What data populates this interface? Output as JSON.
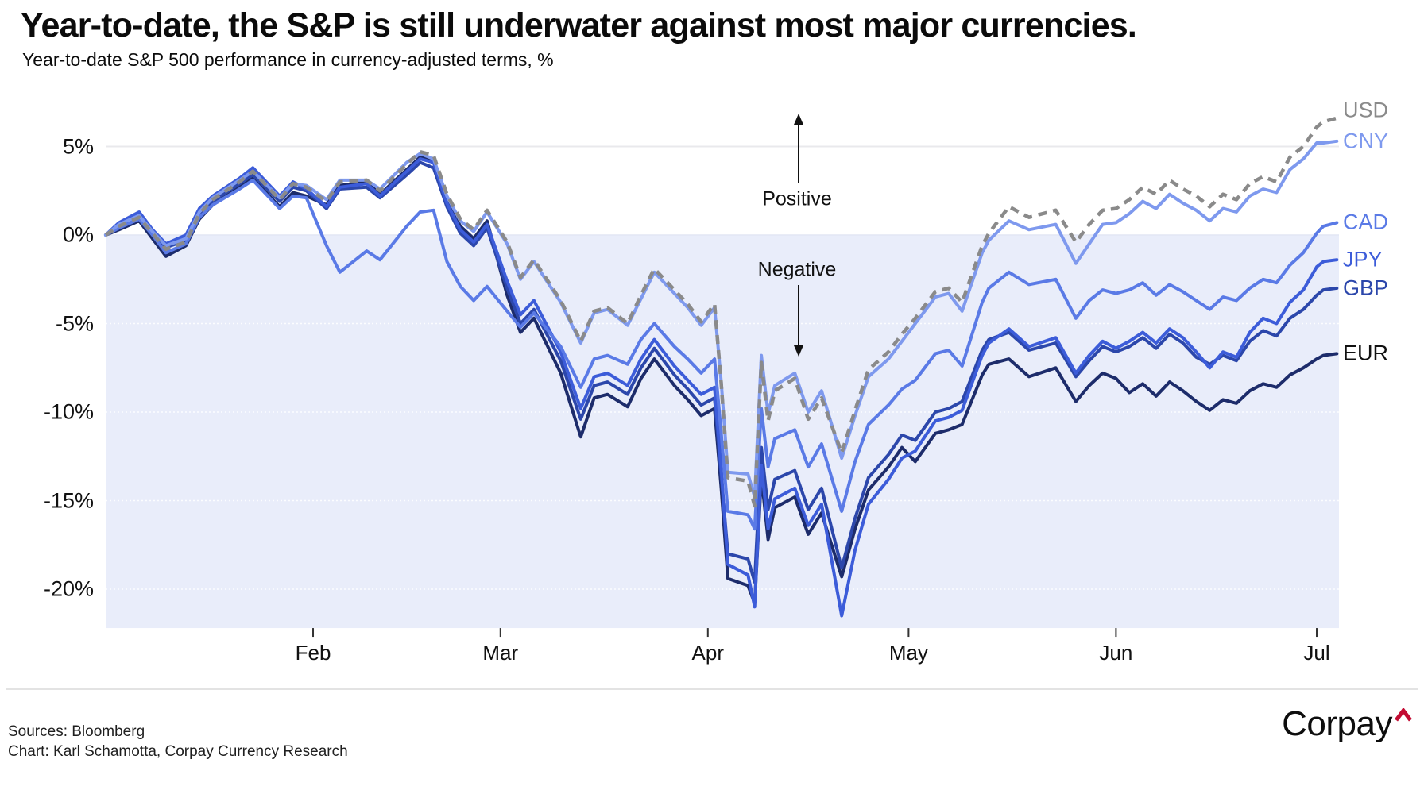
{
  "chart_data": {
    "type": "line",
    "title": "Year-to-date, the S&P is still underwater against most major currencies.",
    "subtitle": "Year-to-date S&P 500 performance in currency-adjusted terms, %",
    "unit": "%",
    "x_unit": "day_of_year_2025",
    "xlim_days": [
      1,
      185
    ],
    "ylim": [
      -22.2,
      7.0
    ],
    "grid": true,
    "negative_region_fill": "#e9edfa",
    "x": [
      1,
      3,
      6,
      8,
      10,
      13,
      15,
      17,
      21,
      23,
      27,
      29,
      31,
      34,
      36,
      40,
      42,
      46,
      48,
      50,
      52,
      54,
      56,
      58,
      61,
      63,
      65,
      69,
      72,
      74,
      76,
      79,
      81,
      83,
      86,
      88,
      90,
      92,
      93,
      94,
      97,
      98,
      99,
      100,
      101,
      104,
      106,
      108,
      111,
      113,
      115,
      118,
      120,
      122,
      125,
      127,
      129,
      132,
      133,
      136,
      139,
      143,
      146,
      148,
      150,
      152,
      154,
      156,
      158,
      160,
      162,
      164,
      166,
      168,
      170,
      172,
      174,
      176,
      178,
      180,
      182,
      183,
      185
    ],
    "x_ticks": [
      {
        "label": "Feb",
        "day": 32
      },
      {
        "label": "Mar",
        "day": 60
      },
      {
        "label": "Apr",
        "day": 91
      },
      {
        "label": "May",
        "day": 121
      },
      {
        "label": "Jun",
        "day": 152
      },
      {
        "label": "Jul",
        "day": 182
      }
    ],
    "y_ticks": [
      {
        "label": "5%",
        "value": 5
      },
      {
        "label": "0%",
        "value": 0
      },
      {
        "label": "-5%",
        "value": -5
      },
      {
        "label": "-10%",
        "value": -10
      },
      {
        "label": "-15%",
        "value": -15
      },
      {
        "label": "-20%",
        "value": -20
      }
    ],
    "series": [
      {
        "name": "USD",
        "color": "#8a8a8a",
        "style": "dashed",
        "values": [
          0,
          0.5,
          1.0,
          0.1,
          -0.8,
          -0.4,
          1.2,
          2.0,
          3.0,
          3.6,
          2.0,
          2.9,
          2.7,
          1.9,
          3.0,
          3.1,
          2.5,
          4.0,
          4.7,
          4.5,
          2.3,
          0.9,
          0.3,
          1.4,
          -0.4,
          -2.4,
          -1.4,
          -3.7,
          -6.0,
          -4.3,
          -4.1,
          -5.0,
          -3.4,
          -1.9,
          -3.1,
          -3.9,
          -4.9,
          -3.9,
          -8.4,
          -13.7,
          -13.9,
          -15.3,
          -7.2,
          -10.5,
          -8.8,
          -8.1,
          -10.4,
          -9.2,
          -12.3,
          -9.9,
          -7.6,
          -6.6,
          -5.6,
          -4.7,
          -3.2,
          -3.0,
          -3.8,
          -0.6,
          0.1,
          1.6,
          1.0,
          1.4,
          -0.4,
          0.6,
          1.4,
          1.5,
          2.0,
          2.7,
          2.3,
          3.1,
          2.6,
          2.2,
          1.6,
          2.3,
          2.0,
          2.9,
          3.3,
          3.0,
          4.4,
          5.0,
          6.1,
          6.4,
          6.6
        ]
      },
      {
        "name": "CNY",
        "color": "#7e99ee",
        "style": "solid",
        "values": [
          0,
          0.6,
          1.1,
          0.2,
          -0.6,
          -0.2,
          1.3,
          2.1,
          3.1,
          3.6,
          2.1,
          2.9,
          2.8,
          2.0,
          3.1,
          3.1,
          2.6,
          4.1,
          4.6,
          4.3,
          2.2,
          0.8,
          0.2,
          1.3,
          -0.5,
          -2.5,
          -1.5,
          -3.8,
          -6.1,
          -4.4,
          -4.2,
          -5.1,
          -3.6,
          -2.1,
          -3.3,
          -4.1,
          -5.1,
          -4.1,
          -8.3,
          -13.4,
          -13.5,
          -14.8,
          -6.8,
          -10.1,
          -8.5,
          -7.8,
          -10.0,
          -8.8,
          -12.6,
          -10.2,
          -8.0,
          -7.0,
          -6.0,
          -5.0,
          -3.5,
          -3.3,
          -4.3,
          -1.0,
          -0.3,
          0.8,
          0.3,
          0.6,
          -1.6,
          -0.5,
          0.6,
          0.7,
          1.2,
          1.9,
          1.5,
          2.3,
          1.8,
          1.4,
          0.8,
          1.5,
          1.3,
          2.2,
          2.6,
          2.4,
          3.7,
          4.3,
          5.2,
          5.2,
          5.3
        ]
      },
      {
        "name": "CAD",
        "color": "#5a7ae6",
        "style": "solid",
        "values": [
          0,
          0.4,
          0.9,
          0.0,
          -1.0,
          -0.5,
          1.0,
          1.7,
          2.6,
          3.1,
          1.5,
          2.2,
          2.1,
          -0.6,
          -2.1,
          -0.9,
          -1.4,
          0.5,
          1.3,
          1.4,
          -1.5,
          -2.9,
          -3.7,
          -2.9,
          -4.3,
          -5.2,
          -4.4,
          -6.3,
          -8.6,
          -7.0,
          -6.8,
          -7.3,
          -5.9,
          -5.0,
          -6.3,
          -7.0,
          -7.8,
          -7.0,
          -11.2,
          -15.6,
          -15.8,
          -16.6,
          -9.8,
          -13.1,
          -11.5,
          -11.0,
          -13.1,
          -11.8,
          -15.6,
          -12.8,
          -10.7,
          -9.6,
          -8.7,
          -8.2,
          -6.7,
          -6.5,
          -7.4,
          -3.8,
          -3.0,
          -2.1,
          -2.8,
          -2.5,
          -4.7,
          -3.7,
          -3.1,
          -3.3,
          -3.1,
          -2.7,
          -3.4,
          -2.8,
          -3.2,
          -3.7,
          -4.2,
          -3.5,
          -3.7,
          -3.0,
          -2.5,
          -2.7,
          -1.7,
          -1.0,
          0.1,
          0.5,
          0.7
        ]
      },
      {
        "name": "JPY",
        "color": "#3c5cd9",
        "style": "solid",
        "values": [
          0,
          0.7,
          1.3,
          0.3,
          -0.5,
          0.0,
          1.5,
          2.2,
          3.2,
          3.8,
          2.2,
          3.0,
          2.6,
          1.6,
          2.7,
          2.9,
          2.2,
          3.6,
          4.3,
          4.1,
          1.8,
          0.3,
          -0.4,
          0.6,
          -2.6,
          -4.5,
          -3.7,
          -6.6,
          -9.8,
          -8.0,
          -7.8,
          -8.5,
          -7.0,
          -5.9,
          -7.4,
          -8.2,
          -9.0,
          -8.6,
          -13.2,
          -18.6,
          -19.2,
          -21.0,
          -13.0,
          -16.6,
          -14.9,
          -14.3,
          -16.4,
          -15.2,
          -21.5,
          -17.8,
          -15.2,
          -13.8,
          -12.6,
          -12.2,
          -10.5,
          -10.3,
          -9.9,
          -6.8,
          -6.1,
          -5.3,
          -6.3,
          -5.8,
          -7.8,
          -6.8,
          -6.0,
          -6.4,
          -6.0,
          -5.5,
          -6.1,
          -5.3,
          -5.8,
          -6.6,
          -7.5,
          -6.6,
          -6.9,
          -5.5,
          -4.7,
          -5.0,
          -3.8,
          -3.1,
          -1.8,
          -1.5,
          -1.4
        ]
      },
      {
        "name": "GBP",
        "color": "#2c47ab",
        "style": "solid",
        "values": [
          0,
          0.5,
          1.1,
          0.1,
          -0.7,
          -0.3,
          1.2,
          1.9,
          2.9,
          3.4,
          1.9,
          2.7,
          2.5,
          1.5,
          2.6,
          2.7,
          2.1,
          3.4,
          4.1,
          3.8,
          1.6,
          0.1,
          -0.6,
          0.4,
          -3.0,
          -5.0,
          -4.2,
          -7.1,
          -10.4,
          -8.5,
          -8.3,
          -9.0,
          -7.5,
          -6.4,
          -7.9,
          -8.7,
          -9.6,
          -9.2,
          -13.6,
          -18.0,
          -18.3,
          -19.6,
          -12.0,
          -15.5,
          -13.8,
          -13.3,
          -15.5,
          -14.3,
          -18.8,
          -16.0,
          -13.7,
          -12.4,
          -11.3,
          -11.6,
          -10.0,
          -9.8,
          -9.4,
          -6.5,
          -5.9,
          -5.5,
          -6.5,
          -6.1,
          -8.0,
          -7.1,
          -6.3,
          -6.6,
          -6.3,
          -5.8,
          -6.4,
          -5.6,
          -6.1,
          -6.9,
          -7.3,
          -6.8,
          -7.1,
          -6.0,
          -5.4,
          -5.7,
          -4.7,
          -4.2,
          -3.4,
          -3.1,
          -3.0
        ]
      },
      {
        "name": "EUR",
        "color": "#1d2c6b",
        "style": "solid",
        "label_color": "#111111",
        "values": [
          0,
          0.3,
          0.8,
          -0.2,
          -1.2,
          -0.6,
          0.9,
          1.7,
          2.7,
          3.2,
          1.6,
          2.4,
          2.2,
          1.7,
          2.8,
          3.0,
          2.3,
          3.7,
          4.4,
          4.2,
          2.0,
          0.5,
          -0.2,
          0.8,
          -3.4,
          -5.5,
          -4.7,
          -7.8,
          -11.4,
          -9.2,
          -9.0,
          -9.7,
          -8.1,
          -7.0,
          -8.5,
          -9.3,
          -10.2,
          -9.8,
          -14.3,
          -19.4,
          -19.8,
          -20.8,
          -13.6,
          -17.2,
          -15.4,
          -14.8,
          -16.9,
          -15.7,
          -19.3,
          -16.6,
          -14.4,
          -13.1,
          -12.0,
          -12.8,
          -11.2,
          -11.0,
          -10.7,
          -7.9,
          -7.3,
          -7.0,
          -8.0,
          -7.5,
          -9.4,
          -8.5,
          -7.8,
          -8.1,
          -8.9,
          -8.4,
          -9.1,
          -8.3,
          -8.8,
          -9.4,
          -9.9,
          -9.3,
          -9.5,
          -8.8,
          -8.4,
          -8.6,
          -7.9,
          -7.5,
          -7.0,
          -6.8,
          -6.7
        ]
      }
    ],
    "annotations": {
      "positive_label": "Positive",
      "negative_label": "Negative"
    }
  },
  "footer": {
    "sources": "Sources: Bloomberg",
    "credit": "Chart: Karl Schamotta, Corpay Currency Research",
    "logo_text": "Corpay",
    "logo_caret_color": "#c30c33"
  }
}
